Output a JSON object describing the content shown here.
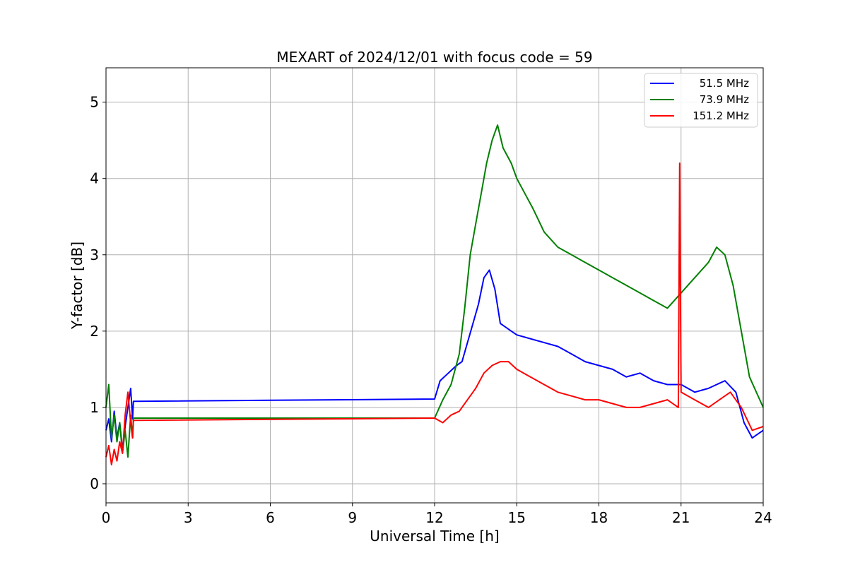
{
  "chart_data": {
    "type": "line",
    "title": "MEXART of 2024/12/01 with focus code = 59",
    "xlabel": "Universal Time [h]",
    "ylabel": "Y-factor [dB]",
    "xlim": [
      0,
      24
    ],
    "ylim": [
      -0.25,
      5.45
    ],
    "xticks": [
      0,
      3,
      6,
      9,
      12,
      15,
      18,
      21,
      24
    ],
    "yticks": [
      0,
      1,
      2,
      3,
      4,
      5
    ],
    "grid": true,
    "legend_position": "top-right",
    "series": [
      {
        "name": "51.5 MHz",
        "color": "#0000ff",
        "x": [
          0.0,
          0.1,
          0.2,
          0.3,
          0.4,
          0.5,
          0.6,
          0.7,
          0.8,
          0.9,
          0.97,
          1.0,
          12.0,
          12.2,
          12.5,
          12.8,
          13.0,
          13.2,
          13.4,
          13.6,
          13.8,
          14.0,
          14.2,
          14.4,
          14.6,
          14.8,
          15.0,
          15.5,
          16.0,
          16.5,
          17.0,
          17.5,
          18.0,
          18.5,
          19.0,
          19.5,
          20.0,
          20.5,
          21.0,
          21.5,
          22.0,
          22.3,
          22.6,
          23.0,
          23.3,
          23.6,
          24.0
        ],
        "y": [
          0.7,
          0.85,
          0.55,
          0.95,
          0.6,
          0.8,
          0.45,
          0.75,
          1.0,
          1.25,
          0.85,
          1.08,
          1.11,
          1.35,
          1.45,
          1.55,
          1.6,
          1.85,
          2.1,
          2.35,
          2.7,
          2.8,
          2.55,
          2.1,
          2.05,
          2.0,
          1.95,
          1.9,
          1.85,
          1.8,
          1.7,
          1.6,
          1.55,
          1.5,
          1.4,
          1.45,
          1.35,
          1.3,
          1.3,
          1.2,
          1.25,
          1.3,
          1.35,
          1.2,
          0.8,
          0.6,
          0.7
        ]
      },
      {
        "name": "73.9 MHz",
        "color": "#008000",
        "x": [
          0.0,
          0.1,
          0.2,
          0.3,
          0.4,
          0.5,
          0.6,
          0.7,
          0.8,
          0.9,
          0.97,
          1.0,
          12.0,
          12.3,
          12.6,
          12.9,
          13.1,
          13.3,
          13.5,
          13.7,
          13.9,
          14.1,
          14.3,
          14.5,
          14.8,
          15.0,
          15.3,
          15.6,
          16.0,
          16.5,
          17.0,
          17.5,
          18.0,
          18.5,
          19.0,
          19.5,
          20.0,
          20.5,
          21.0,
          21.5,
          22.0,
          22.3,
          22.6,
          22.9,
          23.2,
          23.5,
          24.0
        ],
        "y": [
          1.0,
          1.3,
          0.6,
          0.9,
          0.55,
          0.8,
          0.4,
          0.7,
          0.35,
          0.9,
          0.6,
          0.86,
          0.86,
          1.1,
          1.3,
          1.7,
          2.3,
          3.0,
          3.4,
          3.8,
          4.2,
          4.5,
          4.7,
          4.4,
          4.2,
          4.0,
          3.8,
          3.6,
          3.3,
          3.1,
          3.0,
          2.9,
          2.8,
          2.7,
          2.6,
          2.5,
          2.4,
          2.3,
          2.5,
          2.7,
          2.9,
          3.1,
          3.0,
          2.6,
          2.0,
          1.4,
          1.0
        ]
      },
      {
        "name": "151.2 MHz",
        "color": "#ff0000",
        "x": [
          0.0,
          0.1,
          0.2,
          0.3,
          0.4,
          0.5,
          0.6,
          0.7,
          0.8,
          0.9,
          0.97,
          1.0,
          12.0,
          12.3,
          12.6,
          12.9,
          13.2,
          13.5,
          13.8,
          14.1,
          14.4,
          14.7,
          15.0,
          15.5,
          16.0,
          16.5,
          17.0,
          17.5,
          18.0,
          18.5,
          19.0,
          19.5,
          20.0,
          20.5,
          20.9,
          20.95,
          21.0,
          21.5,
          22.0,
          22.4,
          22.8,
          23.2,
          23.6,
          24.0
        ],
        "y": [
          0.35,
          0.5,
          0.25,
          0.45,
          0.3,
          0.55,
          0.4,
          0.9,
          1.2,
          0.8,
          0.6,
          0.83,
          0.86,
          0.8,
          0.9,
          0.95,
          1.1,
          1.25,
          1.45,
          1.55,
          1.6,
          1.6,
          1.5,
          1.4,
          1.3,
          1.2,
          1.15,
          1.1,
          1.1,
          1.05,
          1.0,
          1.0,
          1.05,
          1.1,
          1.0,
          4.2,
          1.2,
          1.1,
          1.0,
          1.1,
          1.2,
          1.0,
          0.7,
          0.75
        ]
      }
    ]
  }
}
